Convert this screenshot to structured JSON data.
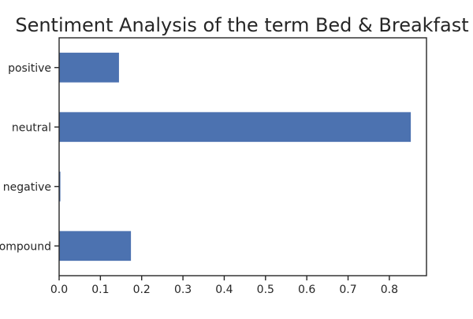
{
  "chart_data": {
    "type": "bar",
    "orientation": "horizontal",
    "title": "Sentiment Analysis of the term Bed & Breakfast",
    "categories": [
      "positive",
      "neutral",
      "negative",
      "compound"
    ],
    "values": [
      0.145,
      0.852,
      0.003,
      0.174
    ],
    "xlabel": "",
    "ylabel": "",
    "xlim": [
      0.0,
      0.89
    ],
    "xticks": [
      "0.0",
      "0.1",
      "0.2",
      "0.3",
      "0.4",
      "0.5",
      "0.6",
      "0.7",
      "0.8"
    ],
    "grid": false,
    "legend": "none",
    "bar_color": "#4c72b0"
  }
}
